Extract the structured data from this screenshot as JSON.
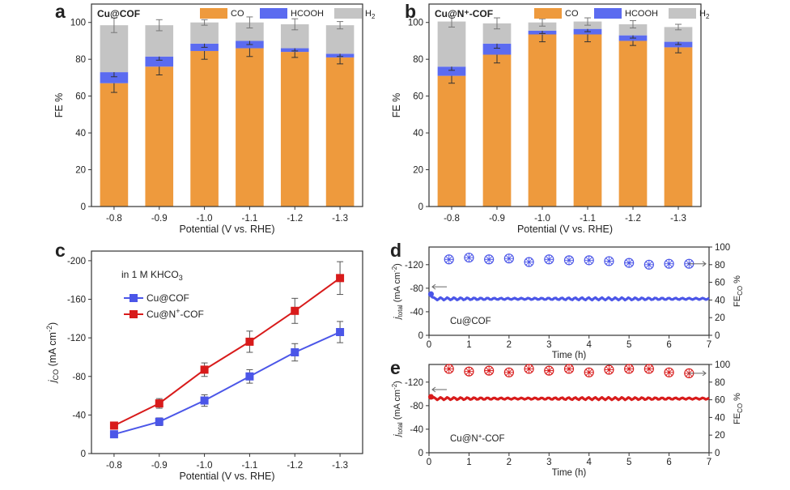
{
  "colors": {
    "co": "#EE9A3D",
    "hcooh": "#5B6BF0",
    "h2": "#C4C4C4",
    "cu_line": "#4B56E8",
    "cun_line": "#D81B1B"
  },
  "chart_data": [
    {
      "panel": "a",
      "type": "bar",
      "stacked": true,
      "title": "Cu@COF",
      "categories": [
        "-0.8",
        "-0.9",
        "-1.0",
        "-1.1",
        "-1.2",
        "-1.3"
      ],
      "xlabel": "Potential (V vs. RHE)",
      "ylabel": "FE %",
      "ylim": [
        0,
        110
      ],
      "yticks": [
        "0",
        "20",
        "40",
        "60",
        "80",
        "100"
      ],
      "legend_placement": "top",
      "series": [
        {
          "name": "CO",
          "values": [
            67,
            76,
            84.5,
            86,
            84,
            81
          ],
          "err": [
            5,
            4.5,
            4.5,
            4.5,
            3,
            3.5
          ]
        },
        {
          "name": "HCOOH",
          "values": [
            6,
            5.5,
            4,
            4,
            2,
            2
          ],
          "err": [
            2.5,
            2,
            2,
            2,
            1.5,
            1.5
          ]
        },
        {
          "name": "H2",
          "values": [
            25.5,
            17,
            11.5,
            10,
            13,
            15.5
          ],
          "err": [
            4,
            3,
            1.5,
            3,
            3,
            2
          ]
        }
      ],
      "legend": [
        "CO",
        "HCOOH",
        "H",
        "2"
      ]
    },
    {
      "panel": "b",
      "type": "bar",
      "stacked": true,
      "title": "Cu@N⁺-COF",
      "categories": [
        "-0.8",
        "-0.9",
        "-1.0",
        "-1.1",
        "-1.2",
        "-1.3"
      ],
      "xlabel": "Potential (V vs. RHE)",
      "ylabel": "FE %",
      "ylim": [
        0,
        110
      ],
      "yticks": [
        "0",
        "20",
        "40",
        "60",
        "80",
        "100"
      ],
      "legend_placement": "top",
      "series": [
        {
          "name": "CO",
          "values": [
            71,
            82.5,
            93.5,
            93.5,
            90,
            86.5
          ],
          "err": [
            4,
            4.5,
            4,
            4,
            2.5,
            3
          ]
        },
        {
          "name": "HCOOH",
          "values": [
            5,
            6,
            2,
            3,
            3,
            3
          ],
          "err": [
            2,
            2.5,
            1.5,
            1.5,
            1.5,
            1.5
          ]
        },
        {
          "name": "H2",
          "values": [
            24.5,
            11,
            4.5,
            4,
            6,
            8
          ],
          "err": [
            3,
            3,
            2,
            2,
            2,
            1.5
          ]
        }
      ],
      "legend": [
        "CO",
        "HCOOH",
        "H",
        "2"
      ]
    },
    {
      "panel": "c",
      "type": "line",
      "x": [
        "-0.8",
        "-0.9",
        "-1.0",
        "-1.1",
        "-1.2",
        "-1.3"
      ],
      "xlabel": "Potential (V vs. RHE)",
      "ylabel_main": "j",
      "ylabel_sub": "CO",
      "ylabel_unit": " (mA cm",
      "ylabel_sup": "-2",
      "ylabel_end": ")",
      "ylim": [
        0,
        -210
      ],
      "yticks": [
        "0",
        "-40",
        "-80",
        "-120",
        "-160",
        "-200"
      ],
      "annotation_main": "in 1 M KHCO",
      "annotation_sub": "3",
      "legend_placement": "top-left",
      "series": [
        {
          "name": "Cu@COF",
          "values": [
            -20,
            -33,
            -55,
            -80,
            -105,
            -126
          ],
          "err": [
            3,
            4,
            6,
            7,
            9,
            11
          ]
        },
        {
          "name_main": "Cu@N",
          "name_sup": "+",
          "name_end": "-COF",
          "values": [
            -29,
            -52,
            -87,
            -116,
            -148,
            -182
          ],
          "err": [
            3,
            5,
            7,
            11,
            13,
            17
          ]
        }
      ]
    },
    {
      "panel": "d",
      "type": "scatter",
      "label": "Cu@COF",
      "xlabel": "Time (h)",
      "xlim": [
        0,
        7
      ],
      "xticks": [
        "0",
        "1",
        "2",
        "3",
        "4",
        "5",
        "6",
        "7"
      ],
      "ylabel_left_main": "j",
      "ylabel_left_sub": "total",
      "ylabel_left_unit": " (mA cm",
      "ylabel_left_sup": "-2",
      "ylabel_left_end": ")",
      "ylim_left": [
        0,
        -150
      ],
      "yticks_left": [
        "0",
        "-40",
        "-80",
        "-120"
      ],
      "ylabel_right_main": "FE",
      "ylabel_right_sub": "CO",
      "ylabel_right_end": " %",
      "ylim_right": [
        0,
        100
      ],
      "yticks_right": [
        "0",
        "20",
        "40",
        "60",
        "80",
        "100"
      ],
      "current": {
        "base": -62,
        "start": -70
      },
      "fe": {
        "x": [
          0.5,
          1,
          1.5,
          2,
          2.5,
          3,
          3.5,
          4,
          4.5,
          5,
          5.5,
          6,
          6.5
        ],
        "values": [
          86,
          88,
          86,
          87,
          83,
          86,
          85,
          85,
          84,
          82,
          80,
          81,
          81
        ]
      }
    },
    {
      "panel": "e",
      "type": "scatter",
      "label_main": "Cu@N",
      "label_sup": "+",
      "label_end": "-COF",
      "xlabel": "Time (h)",
      "xlim": [
        0,
        7
      ],
      "xticks": [
        "0",
        "1",
        "2",
        "3",
        "4",
        "5",
        "6",
        "7"
      ],
      "ylabel_left_main": "j",
      "ylabel_left_sub": "total",
      "ylabel_left_unit": " (mA cm",
      "ylabel_left_sup": "-2",
      "ylabel_left_end": ")",
      "ylim_left": [
        0,
        -150
      ],
      "yticks_left": [
        "0",
        "-40",
        "-80",
        "-120"
      ],
      "ylabel_right_main": "FE",
      "ylabel_right_sub": "CO",
      "ylabel_right_end": " %",
      "ylim_right": [
        0,
        100
      ],
      "yticks_right": [
        "0",
        "20",
        "40",
        "60",
        "80",
        "100"
      ],
      "current": {
        "base": -92,
        "start": -95
      },
      "fe": {
        "x": [
          0.5,
          1,
          1.5,
          2,
          2.5,
          3,
          3.5,
          4,
          4.5,
          5,
          5.5,
          6,
          6.5
        ],
        "values": [
          95,
          92,
          93,
          91,
          95,
          93,
          95,
          91,
          94,
          95,
          95,
          91,
          90
        ]
      }
    }
  ]
}
